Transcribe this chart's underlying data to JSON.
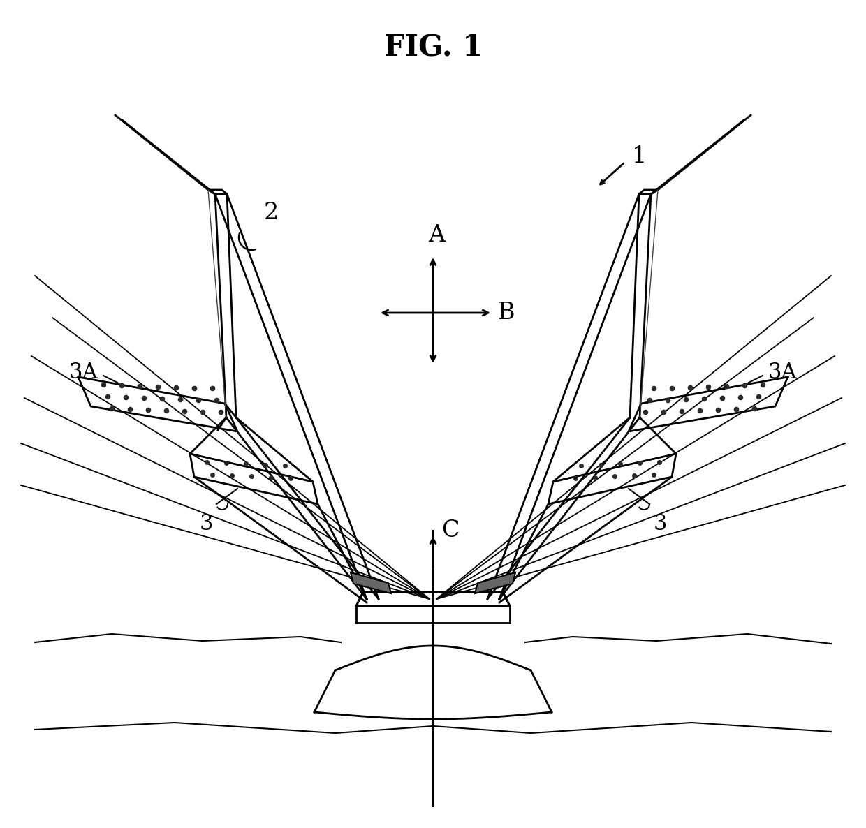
{
  "title": "FIG. 1",
  "title_fontsize": 30,
  "title_fontweight": "bold",
  "background_color": "#ffffff",
  "line_color": "#000000",
  "label_1": "1",
  "label_2": "2",
  "label_3": "3",
  "label_3A": "3A",
  "label_A": "A",
  "label_B": "B",
  "label_C": "C",
  "lw_main": 2.0,
  "lw_thin": 1.5
}
